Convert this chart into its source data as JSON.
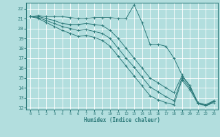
{
  "xlabel": "Humidex (Indice chaleur)",
  "bg_color": "#b2dede",
  "grid_color": "#ffffff",
  "line_color": "#2d7a7a",
  "xlim": [
    -0.5,
    23.5
  ],
  "ylim": [
    11.8,
    22.6
  ],
  "yticks": [
    12,
    13,
    14,
    15,
    16,
    17,
    18,
    19,
    20,
    21,
    22
  ],
  "xticks": [
    0,
    1,
    2,
    3,
    4,
    5,
    6,
    7,
    8,
    9,
    10,
    11,
    12,
    13,
    14,
    15,
    16,
    17,
    18,
    19,
    20,
    21,
    22,
    23
  ],
  "series": [
    {
      "x": [
        0,
        1,
        2,
        3,
        4,
        5,
        6,
        7,
        8,
        9,
        10,
        11,
        12,
        13,
        14,
        15,
        16,
        17,
        18,
        19,
        20,
        21,
        22,
        23
      ],
      "y": [
        21.2,
        21.3,
        21.2,
        21.2,
        21.2,
        21.1,
        21.0,
        21.0,
        21.1,
        21.1,
        21.1,
        21.0,
        21.0,
        22.4,
        20.6,
        18.4,
        18.4,
        18.2,
        17.0,
        15.3,
        14.2,
        12.5,
        12.3,
        12.7
      ]
    },
    {
      "x": [
        0,
        1,
        2,
        3,
        4,
        5,
        6,
        7,
        8,
        9,
        10,
        11,
        12,
        13,
        14,
        15,
        16,
        17,
        18,
        19,
        20,
        21,
        22,
        23
      ],
      "y": [
        21.2,
        21.2,
        21.0,
        20.8,
        20.5,
        20.4,
        20.4,
        20.5,
        20.4,
        20.3,
        19.8,
        19.0,
        18.0,
        17.0,
        16.0,
        15.0,
        14.5,
        14.0,
        13.5,
        15.2,
        14.2,
        12.5,
        12.2,
        12.7
      ]
    },
    {
      "x": [
        0,
        1,
        2,
        3,
        4,
        5,
        6,
        7,
        8,
        9,
        10,
        11,
        12,
        13,
        14,
        15,
        16,
        17,
        18,
        19,
        20,
        21,
        22,
        23
      ],
      "y": [
        21.2,
        21.1,
        20.8,
        20.5,
        20.2,
        20.0,
        19.8,
        19.9,
        19.7,
        19.5,
        19.0,
        18.0,
        17.0,
        16.1,
        15.1,
        14.1,
        13.6,
        13.1,
        12.7,
        15.0,
        14.0,
        12.5,
        12.2,
        12.6
      ]
    },
    {
      "x": [
        0,
        1,
        2,
        3,
        4,
        5,
        6,
        7,
        8,
        9,
        10,
        11,
        12,
        13,
        14,
        15,
        16,
        17,
        18,
        19,
        20,
        21,
        22,
        23
      ],
      "y": [
        21.2,
        21.0,
        20.6,
        20.2,
        19.8,
        19.5,
        19.2,
        19.3,
        19.1,
        18.8,
        18.2,
        17.2,
        16.2,
        15.2,
        14.2,
        13.2,
        12.8,
        12.5,
        12.3,
        14.8,
        13.8,
        12.4,
        12.2,
        12.5
      ]
    }
  ]
}
